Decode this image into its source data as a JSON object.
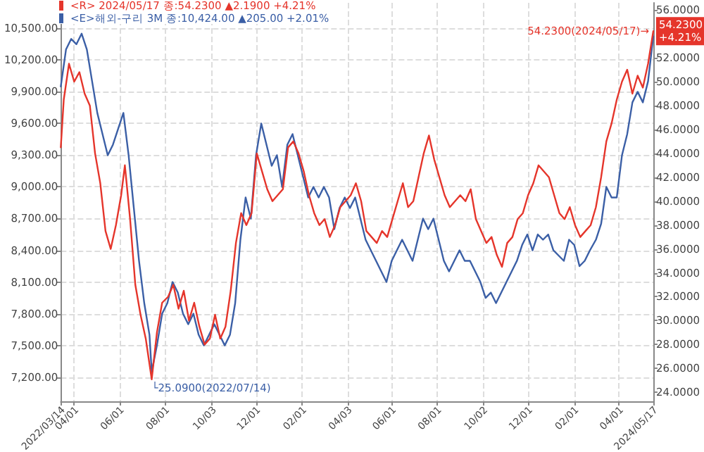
{
  "chart_data": {
    "type": "line",
    "legend": "top left",
    "grid": true,
    "marker": "none",
    "line_style": "solid",
    "xlim": [
      "2022-03-14",
      "2024-05-17"
    ],
    "xticks": [
      {
        "value": "2022-03-14",
        "label": "2022/03/14"
      },
      {
        "value": "2022-04-01",
        "label": "04/01"
      },
      {
        "value": "2022-06-01",
        "label": "06/01"
      },
      {
        "value": "2022-08-01",
        "label": "08/01"
      },
      {
        "value": "2022-10-03",
        "label": "10/03"
      },
      {
        "value": "2022-12-01",
        "label": "12/01"
      },
      {
        "value": "2023-02-01",
        "label": "02/01"
      },
      {
        "value": "2023-04-03",
        "label": "04/03"
      },
      {
        "value": "2023-06-01",
        "label": "06/01"
      },
      {
        "value": "2023-08-01",
        "label": "08/01"
      },
      {
        "value": "2023-10-02",
        "label": "10/02"
      },
      {
        "value": "2023-12-01",
        "label": "12/01"
      },
      {
        "value": "2024-02-01",
        "label": "02/01"
      },
      {
        "value": "2024-04-01",
        "label": "04/01"
      },
      {
        "value": "2024-05-17",
        "label": "2024/05/17"
      }
    ],
    "ylim": [
      6971,
      10742
    ],
    "yticks": [
      {
        "value": 7200,
        "label": "7,200.00"
      },
      {
        "value": 7500,
        "label": "7,500.00"
      },
      {
        "value": 7800,
        "label": "7,800.00"
      },
      {
        "value": 8100,
        "label": "8,100.00"
      },
      {
        "value": 8400,
        "label": "8,400.00"
      },
      {
        "value": 8700,
        "label": "8,700.00"
      },
      {
        "value": 9000,
        "label": "9,000.00"
      },
      {
        "value": 9300,
        "label": "9,300.00"
      },
      {
        "value": 9600,
        "label": "9,600.00"
      },
      {
        "value": 9900,
        "label": "9,900.00"
      },
      {
        "value": 10200,
        "label": "10,200.00"
      },
      {
        "value": 10500,
        "label": "10,500.00"
      }
    ],
    "y2lim": [
      23.25,
      56.6
    ],
    "y2ticks": [
      {
        "value": 24,
        "label": "24.0000"
      },
      {
        "value": 26,
        "label": "26.0000"
      },
      {
        "value": 28,
        "label": "28.0000"
      },
      {
        "value": 30,
        "label": "30.0000"
      },
      {
        "value": 32,
        "label": "32.0000"
      },
      {
        "value": 34,
        "label": "34.0000"
      },
      {
        "value": 36,
        "label": "36.0000"
      },
      {
        "value": 38,
        "label": "38.0000"
      },
      {
        "value": 40,
        "label": "40.0000"
      },
      {
        "value": 42,
        "label": "42.0000"
      },
      {
        "value": 44,
        "label": "44.0000"
      },
      {
        "value": 46,
        "label": "46.0000"
      },
      {
        "value": 48,
        "label": "48.0000"
      },
      {
        "value": 50,
        "label": "50.0000"
      },
      {
        "value": 52,
        "label": "52.0000"
      },
      {
        "value": 56,
        "label": "56.0000"
      }
    ],
    "annotations": [
      "54.2300(2024/05/17)→",
      "└25.0900(2022/07/14)",
      "54.2300\n+4.21%"
    ],
    "series": [
      {
        "name": "<R> 2024/05/17 종:54.2300 ▲2.1900 +4.21%",
        "color": "#e5352b",
        "axis": "y2",
        "x": [
          "2022-03-14",
          "2022-03-18",
          "2022-03-25",
          "2022-04-01",
          "2022-04-08",
          "2022-04-15",
          "2022-04-22",
          "2022-04-29",
          "2022-05-06",
          "2022-05-13",
          "2022-05-20",
          "2022-05-27",
          "2022-06-03",
          "2022-06-08",
          "2022-06-15",
          "2022-06-22",
          "2022-06-29",
          "2022-07-06",
          "2022-07-14",
          "2022-07-21",
          "2022-07-28",
          "2022-08-05",
          "2022-08-12",
          "2022-08-19",
          "2022-08-26",
          "2022-09-02",
          "2022-09-09",
          "2022-09-16",
          "2022-09-23",
          "2022-09-30",
          "2022-10-07",
          "2022-10-14",
          "2022-10-21",
          "2022-10-28",
          "2022-11-04",
          "2022-11-11",
          "2022-11-18",
          "2022-11-25",
          "2022-12-02",
          "2022-12-09",
          "2022-12-16",
          "2022-12-23",
          "2022-12-30",
          "2023-01-06",
          "2023-01-13",
          "2023-01-20",
          "2023-01-27",
          "2023-02-03",
          "2023-02-10",
          "2023-02-17",
          "2023-02-24",
          "2023-03-03",
          "2023-03-10",
          "2023-03-17",
          "2023-03-24",
          "2023-03-31",
          "2023-04-07",
          "2023-04-14",
          "2023-04-21",
          "2023-04-28",
          "2023-05-05",
          "2023-05-12",
          "2023-05-19",
          "2023-05-26",
          "2023-06-02",
          "2023-06-09",
          "2023-06-16",
          "2023-06-23",
          "2023-06-30",
          "2023-07-07",
          "2023-07-14",
          "2023-07-21",
          "2023-07-28",
          "2023-08-04",
          "2023-08-11",
          "2023-08-18",
          "2023-08-25",
          "2023-09-01",
          "2023-09-08",
          "2023-09-15",
          "2023-09-22",
          "2023-09-29",
          "2023-10-06",
          "2023-10-13",
          "2023-10-20",
          "2023-10-27",
          "2023-11-03",
          "2023-11-10",
          "2023-11-17",
          "2023-11-24",
          "2023-12-01",
          "2023-12-08",
          "2023-12-15",
          "2023-12-22",
          "2023-12-29",
          "2024-01-05",
          "2024-01-12",
          "2024-01-19",
          "2024-01-26",
          "2024-02-02",
          "2024-02-09",
          "2024-02-16",
          "2024-02-23",
          "2024-03-01",
          "2024-03-08",
          "2024-03-15",
          "2024-03-22",
          "2024-03-29",
          "2024-04-05",
          "2024-04-12",
          "2024-04-19",
          "2024-04-26",
          "2024-05-03",
          "2024-05-10",
          "2024-05-17"
        ],
        "values": [
          44.5,
          48.5,
          51.5,
          50.0,
          50.8,
          49.0,
          48.0,
          44.0,
          41.5,
          37.5,
          36.0,
          38.0,
          40.5,
          43.0,
          38.5,
          33.0,
          30.5,
          28.5,
          25.09,
          29.0,
          31.5,
          32.0,
          33.0,
          31.0,
          32.5,
          30.0,
          31.5,
          29.5,
          28.0,
          28.5,
          30.5,
          28.5,
          29.5,
          32.5,
          36.5,
          39.0,
          38.0,
          39.0,
          44.0,
          42.5,
          41.0,
          40.0,
          40.5,
          41.0,
          44.5,
          45.0,
          44.0,
          42.5,
          40.5,
          39.0,
          38.0,
          38.5,
          37.0,
          38.0,
          39.5,
          40.0,
          40.5,
          41.5,
          40.0,
          37.5,
          37.0,
          36.5,
          37.5,
          37.0,
          38.5,
          40.0,
          41.5,
          39.5,
          40.0,
          42.0,
          44.0,
          45.5,
          43.5,
          42.0,
          40.5,
          39.5,
          40.0,
          40.5,
          40.0,
          41.0,
          38.5,
          37.5,
          36.5,
          37.0,
          35.5,
          34.5,
          36.5,
          37.0,
          38.5,
          39.0,
          40.5,
          41.5,
          43.0,
          42.5,
          42.0,
          40.5,
          39.0,
          38.5,
          39.5,
          38.0,
          37.0,
          37.5,
          38.0,
          39.5,
          42.0,
          45.0,
          46.5,
          48.5,
          50.0,
          51.0,
          49.0,
          50.5,
          49.5,
          51.5,
          54.23
        ]
      },
      {
        "name": "<E>해외-구리 3M 종:10,424.00 ▲205.00 +2.01%",
        "color": "#3b5fa6",
        "x": [
          "2022-03-14",
          "2022-03-21",
          "2022-03-28",
          "2022-04-04",
          "2022-04-11",
          "2022-04-18",
          "2022-04-25",
          "2022-05-02",
          "2022-05-09",
          "2022-05-16",
          "2022-05-23",
          "2022-05-30",
          "2022-06-06",
          "2022-06-13",
          "2022-06-20",
          "2022-06-27",
          "2022-07-04",
          "2022-07-11",
          "2022-07-14",
          "2022-07-21",
          "2022-07-28",
          "2022-08-04",
          "2022-08-11",
          "2022-08-18",
          "2022-08-25",
          "2022-09-01",
          "2022-09-08",
          "2022-09-15",
          "2022-09-22",
          "2022-09-29",
          "2022-10-06",
          "2022-10-13",
          "2022-10-20",
          "2022-10-27",
          "2022-11-03",
          "2022-11-10",
          "2022-11-17",
          "2022-11-24",
          "2022-12-01",
          "2022-12-08",
          "2022-12-15",
          "2022-12-22",
          "2022-12-29",
          "2023-01-05",
          "2023-01-12",
          "2023-01-19",
          "2023-01-26",
          "2023-02-02",
          "2023-02-09",
          "2023-02-16",
          "2023-02-23",
          "2023-03-02",
          "2023-03-09",
          "2023-03-16",
          "2023-03-23",
          "2023-03-30",
          "2023-04-06",
          "2023-04-13",
          "2023-04-20",
          "2023-04-27",
          "2023-05-04",
          "2023-05-11",
          "2023-05-18",
          "2023-05-25",
          "2023-06-01",
          "2023-06-08",
          "2023-06-15",
          "2023-06-22",
          "2023-06-29",
          "2023-07-06",
          "2023-07-13",
          "2023-07-20",
          "2023-07-27",
          "2023-08-03",
          "2023-08-10",
          "2023-08-17",
          "2023-08-24",
          "2023-08-31",
          "2023-09-07",
          "2023-09-14",
          "2023-09-21",
          "2023-09-28",
          "2023-10-05",
          "2023-10-12",
          "2023-10-19",
          "2023-10-26",
          "2023-11-02",
          "2023-11-09",
          "2023-11-16",
          "2023-11-23",
          "2023-11-30",
          "2023-12-07",
          "2023-12-14",
          "2023-12-21",
          "2023-12-28",
          "2024-01-04",
          "2024-01-11",
          "2024-01-18",
          "2024-01-25",
          "2024-02-01",
          "2024-02-08",
          "2024-02-15",
          "2024-02-22",
          "2024-03-01",
          "2024-03-08",
          "2024-03-15",
          "2024-03-22",
          "2024-03-29",
          "2024-04-05",
          "2024-04-12",
          "2024-04-19",
          "2024-04-26",
          "2024-05-03",
          "2024-05-10",
          "2024-05-17"
        ],
        "values": [
          9950,
          10300,
          10400,
          10350,
          10450,
          10300,
          10000,
          9700,
          9500,
          9300,
          9400,
          9550,
          9700,
          9300,
          8800,
          8300,
          7900,
          7600,
          7250,
          7500,
          7800,
          7900,
          8100,
          8000,
          7800,
          7700,
          7800,
          7600,
          7500,
          7600,
          7700,
          7600,
          7500,
          7600,
          7900,
          8500,
          8900,
          8700,
          9300,
          9600,
          9400,
          9200,
          9300,
          9000,
          9400,
          9500,
          9300,
          9100,
          8900,
          9000,
          8900,
          9000,
          8900,
          8600,
          8800,
          8900,
          8800,
          8900,
          8700,
          8500,
          8400,
          8300,
          8200,
          8100,
          8300,
          8400,
          8500,
          8400,
          8300,
          8500,
          8700,
          8600,
          8700,
          8500,
          8300,
          8200,
          8300,
          8400,
          8300,
          8300,
          8200,
          8100,
          7950,
          8000,
          7900,
          8000,
          8100,
          8200,
          8300,
          8450,
          8550,
          8400,
          8550,
          8500,
          8550,
          8400,
          8350,
          8300,
          8500,
          8450,
          8250,
          8300,
          8400,
          8500,
          8650,
          9000,
          8900,
          8900,
          9300,
          9500,
          9800,
          9900,
          9800,
          10000,
          10424
        ]
      }
    ]
  }
}
